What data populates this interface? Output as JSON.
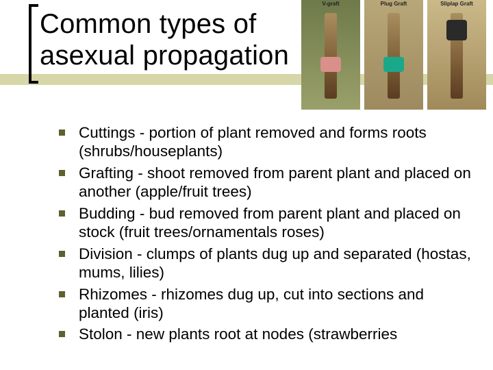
{
  "title_line1": "Common types of",
  "title_line2": "asexual propagation",
  "accent_color": "#d6d6a8",
  "bullet_color": "#5f6030",
  "photos": [
    {
      "label": "V-graft"
    },
    {
      "label": "Plug Graft"
    },
    {
      "label": "Sliplap Graft"
    }
  ],
  "items": [
    "Cuttings - portion of plant removed and forms roots (shrubs/houseplants)",
    "Grafting - shoot removed from parent plant and placed on another (apple/fruit trees)",
    "Budding - bud removed from parent plant and placed on stock (fruit trees/ornamentals roses)",
    "Division - clumps of plants dug up and separated (hostas, mums, lilies)",
    "Rhizomes - rhizomes dug up, cut into sections and planted (iris)",
    "Stolon - new plants root at nodes (strawberries"
  ]
}
